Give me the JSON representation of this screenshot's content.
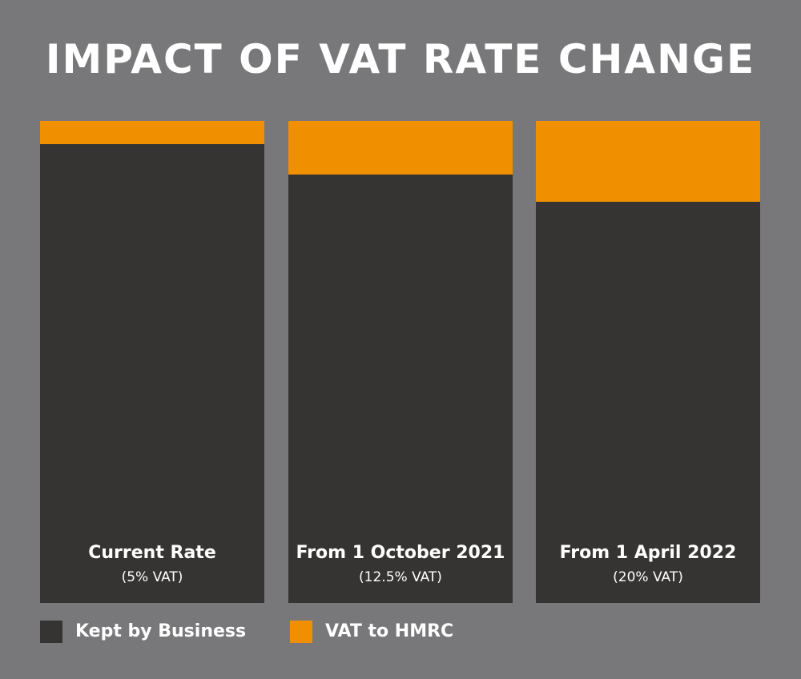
{
  "chart_data": {
    "type": "bar",
    "stacked": true,
    "normalized": true,
    "title": "IMPACT OF VAT RATE CHANGE",
    "categories": [
      "Current Rate",
      "From 1 October 2021",
      "From 1 April 2022"
    ],
    "category_sublabels": [
      "(5% VAT)",
      "(12.5% VAT)",
      "(20% VAT)"
    ],
    "series": [
      {
        "name": "Kept by Business",
        "values": [
          95.2,
          88.9,
          83.3
        ],
        "color": "#353433"
      },
      {
        "name": "VAT to HMRC",
        "values": [
          4.8,
          11.1,
          16.7
        ],
        "color": "#f09000"
      }
    ],
    "ylim": [
      0,
      100
    ],
    "grid": false,
    "legend_position": "bottom-left",
    "background": "#78787a"
  }
}
